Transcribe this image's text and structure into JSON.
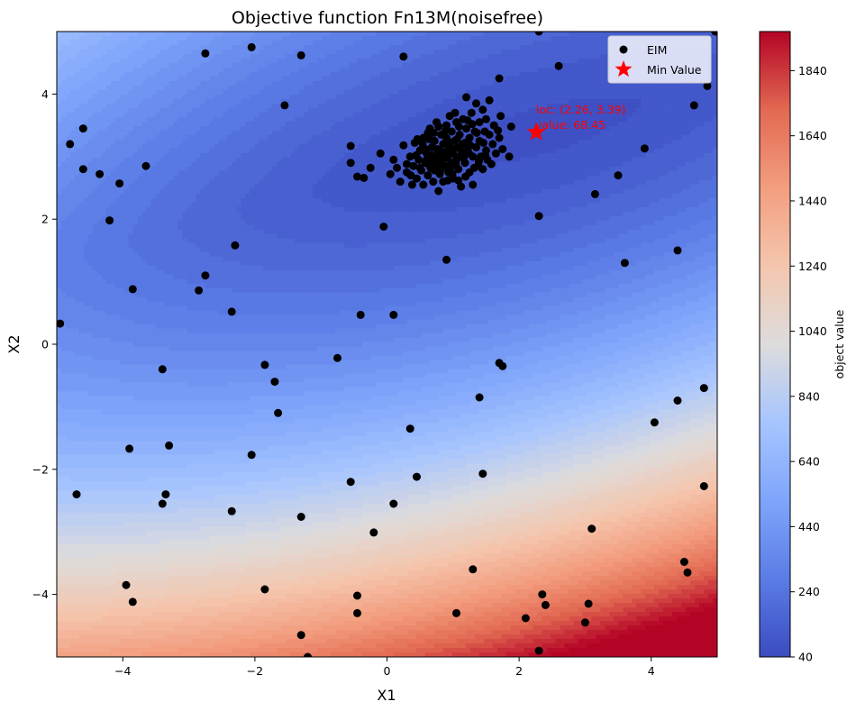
{
  "chart_data": {
    "type": "scatter",
    "title": "Objective function Fn13M(noisefree)",
    "xlabel": "X1",
    "ylabel": "X2",
    "xlim": [
      -5,
      5
    ],
    "ylim": [
      -5,
      5
    ],
    "xticks": [
      -4,
      -2,
      0,
      2,
      4
    ],
    "yticks": [
      -4,
      -2,
      0,
      2,
      4
    ],
    "xtick_labels": [
      "−4",
      "−2",
      "0",
      "2",
      "4"
    ],
    "ytick_labels": [
      "−4",
      "−2",
      "0",
      "2",
      "4"
    ],
    "grid": false,
    "legend": {
      "placement": "top-right",
      "entries": [
        "EIM",
        "Min Value"
      ]
    },
    "colorbar": {
      "label": "object value",
      "range": [
        40,
        1960
      ],
      "ticks": [
        40,
        240,
        440,
        640,
        840,
        1040,
        1240,
        1440,
        1640,
        1840
      ],
      "tick_labels": [
        "40",
        "240",
        "440",
        "640",
        "840",
        "1040",
        "1240",
        "1440",
        "1640",
        "1840"
      ],
      "colormap": "coolwarm",
      "low_color": "#3b4cc0",
      "mid_color": "#dddcdc",
      "high_color": "#b40426"
    },
    "min_point": {
      "x": 2.26,
      "y": 3.39,
      "value": 68.45
    },
    "annotation": {
      "line1": "loc: (2.26, 3.39)",
      "line2": "value: 68.45"
    },
    "series": [
      {
        "name": "EIM",
        "color": "#000000",
        "points": [
          [
            -4.95,
            0.33
          ],
          [
            -4.8,
            3.2
          ],
          [
            -4.6,
            3.45
          ],
          [
            -4.6,
            2.8
          ],
          [
            -4.35,
            2.72
          ],
          [
            -4.2,
            1.98
          ],
          [
            -4.05,
            2.57
          ],
          [
            -3.65,
            2.85
          ],
          [
            -4.7,
            -2.4
          ],
          [
            -3.9,
            -1.67
          ],
          [
            -3.95,
            -3.85
          ],
          [
            -3.85,
            -4.12
          ],
          [
            -3.4,
            -2.55
          ],
          [
            -3.35,
            -2.4
          ],
          [
            -3.3,
            -1.62
          ],
          [
            -3.4,
            -0.4
          ],
          [
            -3.85,
            0.88
          ],
          [
            -2.75,
            4.65
          ],
          [
            -2.75,
            1.1
          ],
          [
            -2.85,
            0.86
          ],
          [
            -2.35,
            0.52
          ],
          [
            -2.3,
            1.58
          ],
          [
            -2.05,
            4.75
          ],
          [
            -2.05,
            -1.77
          ],
          [
            -2.35,
            -2.67
          ],
          [
            -1.85,
            -3.92
          ],
          [
            -1.85,
            -0.33
          ],
          [
            -1.7,
            -0.6
          ],
          [
            -1.65,
            -1.1
          ],
          [
            -1.55,
            3.82
          ],
          [
            -1.3,
            4.62
          ],
          [
            -1.3,
            -2.76
          ],
          [
            -1.3,
            -4.65
          ],
          [
            -1.2,
            -5.0
          ],
          [
            -0.75,
            -0.22
          ],
          [
            -0.55,
            -2.2
          ],
          [
            -0.45,
            -4.02
          ],
          [
            -0.45,
            -4.3
          ],
          [
            -0.4,
            0.47
          ],
          [
            -0.2,
            -3.01
          ],
          [
            0.1,
            -2.55
          ],
          [
            0.1,
            0.47
          ],
          [
            0.25,
            4.6
          ],
          [
            0.35,
            -1.35
          ],
          [
            0.45,
            -2.12
          ],
          [
            -0.05,
            1.88
          ],
          [
            0.9,
            1.35
          ],
          [
            1.05,
            -4.3
          ],
          [
            1.3,
            -3.6
          ],
          [
            1.4,
            -0.85
          ],
          [
            1.45,
            -2.07
          ],
          [
            1.7,
            -0.3
          ],
          [
            1.75,
            -0.35
          ],
          [
            2.3,
            5.0
          ],
          [
            2.3,
            2.05
          ],
          [
            2.1,
            -4.38
          ],
          [
            2.35,
            -4.0
          ],
          [
            2.4,
            -4.17
          ],
          [
            2.3,
            -4.9
          ],
          [
            2.6,
            4.45
          ],
          [
            3.0,
            -4.45
          ],
          [
            3.05,
            -4.15
          ],
          [
            3.1,
            -2.95
          ],
          [
            3.15,
            2.4
          ],
          [
            3.5,
            2.7
          ],
          [
            3.6,
            1.3
          ],
          [
            3.9,
            3.13
          ],
          [
            4.05,
            -1.25
          ],
          [
            4.4,
            1.5
          ],
          [
            4.4,
            -0.9
          ],
          [
            4.5,
            -3.48
          ],
          [
            4.55,
            -3.65
          ],
          [
            4.65,
            3.82
          ],
          [
            4.8,
            -0.7
          ],
          [
            4.8,
            -2.27
          ],
          [
            4.85,
            4.13
          ],
          [
            4.97,
            5.0
          ],
          [
            -0.55,
            3.17
          ],
          [
            -0.55,
            2.9
          ],
          [
            -0.45,
            2.68
          ],
          [
            -0.35,
            2.66
          ],
          [
            -0.25,
            2.82
          ],
          [
            -0.1,
            3.05
          ],
          [
            0.05,
            2.72
          ],
          [
            0.1,
            2.95
          ],
          [
            0.15,
            2.82
          ],
          [
            0.2,
            2.6
          ],
          [
            0.25,
            3.18
          ],
          [
            0.3,
            2.75
          ],
          [
            0.35,
            3.0
          ],
          [
            0.38,
            2.55
          ],
          [
            0.4,
            2.85
          ],
          [
            0.42,
            3.22
          ],
          [
            0.45,
            2.65
          ],
          [
            0.48,
            2.95
          ],
          [
            0.5,
            3.1
          ],
          [
            0.52,
            2.78
          ],
          [
            0.55,
            2.55
          ],
          [
            0.55,
            3.3
          ],
          [
            0.58,
            2.9
          ],
          [
            0.6,
            3.05
          ],
          [
            0.62,
            2.7
          ],
          [
            0.65,
            3.45
          ],
          [
            0.65,
            2.85
          ],
          [
            0.68,
            3.15
          ],
          [
            0.7,
            2.95
          ],
          [
            0.7,
            2.6
          ],
          [
            0.72,
            3.25
          ],
          [
            0.72,
            2.78
          ],
          [
            0.75,
            3.55
          ],
          [
            0.75,
            3.0
          ],
          [
            0.77,
            2.88
          ],
          [
            0.78,
            2.45
          ],
          [
            0.8,
            3.1
          ],
          [
            0.8,
            2.72
          ],
          [
            0.82,
            3.35
          ],
          [
            0.83,
            2.95
          ],
          [
            0.85,
            3.2
          ],
          [
            0.85,
            2.6
          ],
          [
            0.87,
            3.05
          ],
          [
            0.88,
            2.85
          ],
          [
            0.9,
            3.5
          ],
          [
            0.9,
            3.3
          ],
          [
            0.92,
            2.98
          ],
          [
            0.93,
            2.75
          ],
          [
            0.95,
            3.15
          ],
          [
            0.95,
            3.65
          ],
          [
            0.97,
            2.9
          ],
          [
            0.98,
            3.4
          ],
          [
            1.0,
            3.05
          ],
          [
            1.0,
            2.65
          ],
          [
            1.02,
            3.25
          ],
          [
            1.03,
            3.7
          ],
          [
            1.05,
            2.95
          ],
          [
            1.05,
            3.55
          ],
          [
            1.07,
            3.15
          ],
          [
            1.08,
            2.8
          ],
          [
            1.1,
            3.35
          ],
          [
            1.1,
            3.0
          ],
          [
            1.12,
            2.52
          ],
          [
            1.15,
            3.2
          ],
          [
            1.15,
            3.6
          ],
          [
            1.18,
            2.9
          ],
          [
            1.2,
            3.45
          ],
          [
            1.2,
            3.95
          ],
          [
            1.22,
            3.1
          ],
          [
            1.25,
            2.75
          ],
          [
            1.25,
            3.3
          ],
          [
            1.28,
            3.7
          ],
          [
            1.3,
            3.0
          ],
          [
            1.3,
            2.55
          ],
          [
            1.33,
            3.4
          ],
          [
            1.35,
            3.85
          ],
          [
            1.35,
            3.15
          ],
          [
            1.38,
            2.85
          ],
          [
            1.4,
            3.55
          ],
          [
            1.4,
            3.25
          ],
          [
            1.42,
            3.0
          ],
          [
            1.45,
            2.8
          ],
          [
            1.45,
            3.75
          ],
          [
            1.48,
            3.4
          ],
          [
            1.5,
            3.1
          ],
          [
            1.5,
            3.6
          ],
          [
            1.52,
            2.95
          ],
          [
            1.55,
            3.35
          ],
          [
            1.55,
            3.9
          ],
          [
            1.6,
            3.2
          ],
          [
            1.62,
            3.5
          ],
          [
            1.65,
            3.05
          ],
          [
            1.7,
            3.3
          ],
          [
            1.7,
            4.25
          ],
          [
            1.72,
            3.65
          ],
          [
            1.75,
            3.12
          ],
          [
            1.85,
            3.0
          ],
          [
            1.88,
            3.48
          ],
          [
            0.6,
            2.95
          ],
          [
            0.68,
            3.02
          ],
          [
            0.74,
            2.92
          ],
          [
            0.79,
            3.02
          ],
          [
            0.84,
            2.88
          ],
          [
            0.9,
            3.08
          ],
          [
            0.94,
            3.22
          ],
          [
            1.01,
            3.12
          ],
          [
            1.06,
            3.28
          ],
          [
            1.13,
            3.08
          ],
          [
            1.18,
            3.22
          ],
          [
            1.24,
            3.05
          ],
          [
            0.58,
            3.12
          ],
          [
            0.66,
            2.82
          ],
          [
            0.76,
            3.12
          ],
          [
            0.86,
            2.98
          ],
          [
            0.96,
            2.82
          ],
          [
            1.04,
            2.88
          ],
          [
            1.16,
            2.98
          ],
          [
            1.26,
            3.18
          ],
          [
            1.36,
            3.38
          ],
          [
            1.46,
            3.22
          ],
          [
            0.44,
            3.02
          ],
          [
            0.5,
            2.82
          ],
          [
            0.54,
            3.2
          ],
          [
            0.64,
            3.28
          ],
          [
            0.71,
            3.38
          ],
          [
            0.81,
            2.78
          ],
          [
            0.89,
            3.42
          ],
          [
            0.99,
            2.72
          ],
          [
            1.09,
            3.48
          ],
          [
            1.19,
            2.68
          ],
          [
            1.29,
            3.52
          ],
          [
            1.39,
            2.92
          ],
          [
            1.49,
            3.02
          ],
          [
            1.58,
            2.88
          ],
          [
            1.68,
            3.42
          ],
          [
            0.3,
            2.88
          ],
          [
            0.36,
            2.7
          ],
          [
            0.46,
            3.28
          ],
          [
            0.62,
            3.38
          ],
          [
            0.78,
            3.48
          ],
          [
            0.92,
            2.62
          ],
          [
            1.08,
            2.62
          ],
          [
            1.22,
            3.58
          ],
          [
            1.32,
            2.82
          ]
        ]
      }
    ]
  }
}
